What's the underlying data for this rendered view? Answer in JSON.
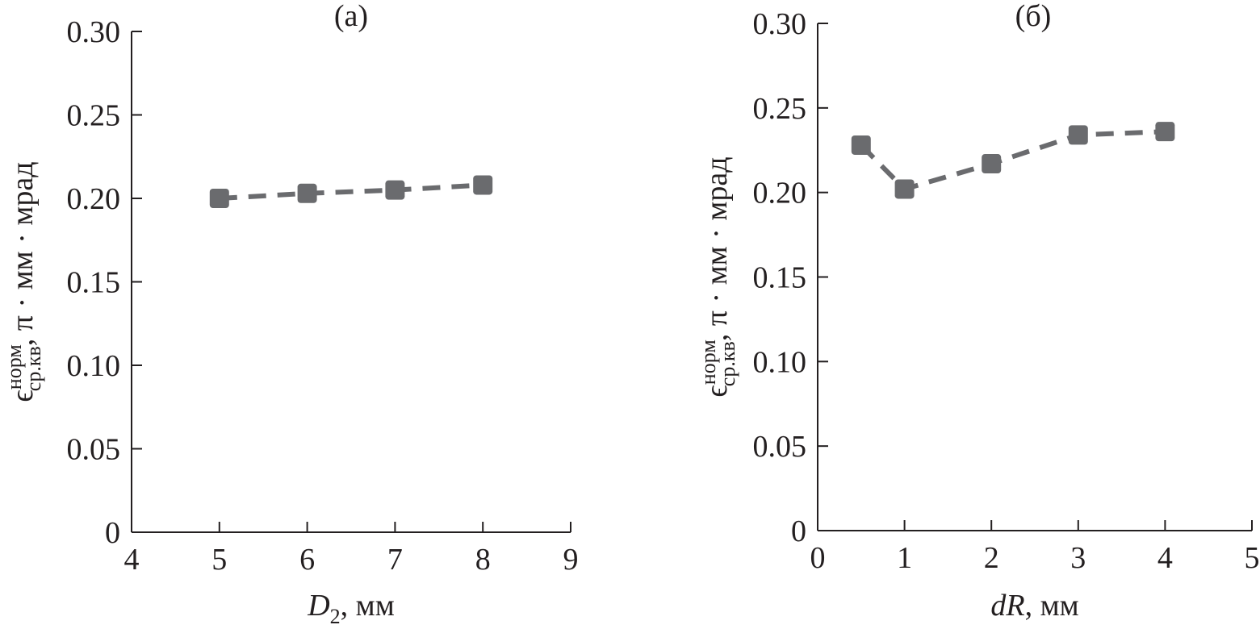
{
  "chart_data": [
    {
      "type": "line",
      "title": "(a)",
      "xlabel": {
        "var": "D",
        "sub": "2",
        "unit": ", мм"
      },
      "ylabel": {
        "sym": "ϵ",
        "sup": "норм",
        "sub": "ср.кв",
        "unit": ", π · мм · мрад"
      },
      "xlim": [
        4,
        9
      ],
      "ylim": [
        0,
        0.3
      ],
      "xticks": [
        "4",
        "5",
        "6",
        "7",
        "8",
        "9"
      ],
      "yticks": [
        "0",
        "0.05",
        "0.10",
        "0.15",
        "0.20",
        "0.25",
        "0.30"
      ],
      "grid": false,
      "series": [
        {
          "name": "",
          "x": [
            5,
            6,
            7,
            8
          ],
          "y": [
            0.2,
            0.203,
            0.205,
            0.208
          ],
          "color": "#6a6b6e",
          "marker": "square",
          "linestyle": "dashed"
        }
      ]
    },
    {
      "type": "line",
      "title": "(б)",
      "xlabel": {
        "var": "dR",
        "sub": "",
        "unit": ", мм"
      },
      "ylabel": {
        "sym": "ϵ",
        "sup": "норм",
        "sub": "ср.кв",
        "unit": ", π · мм · мрад"
      },
      "xlim": [
        0,
        5
      ],
      "ylim": [
        0,
        0.3
      ],
      "xticks": [
        "0",
        "1",
        "2",
        "3",
        "4",
        "5"
      ],
      "yticks": [
        "0",
        "0.05",
        "0.10",
        "0.15",
        "0.20",
        "0.25",
        "0.30"
      ],
      "grid": false,
      "series": [
        {
          "name": "",
          "x": [
            0.5,
            1,
            2,
            3,
            4
          ],
          "y": [
            0.228,
            0.202,
            0.217,
            0.234,
            0.236
          ],
          "color": "#6a6b6e",
          "marker": "square",
          "linestyle": "dashed"
        }
      ]
    }
  ]
}
